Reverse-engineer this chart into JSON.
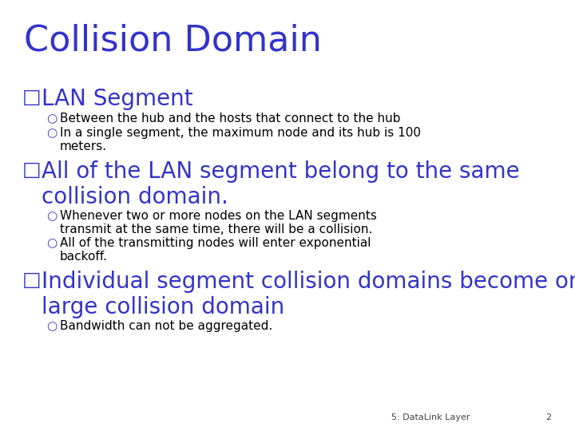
{
  "title": "Collision Domain",
  "title_color": "#3333CC",
  "title_fontsize": 32,
  "background_color": "#FFFFFF",
  "bullet_color": "#3333CC",
  "text_color": "#000000",
  "footer_text": "5: DataLink Layer",
  "footer_number": "2",
  "bullet_marker": "□",
  "sub_bullet_marker": "○",
  "bullet_fontsize": 20,
  "sub_fontsize": 11,
  "bullets": [
    {
      "text": "LAN Segment",
      "sub_bullets": [
        "Between the hub and the hosts that connect to the hub",
        "In a single segment, the maximum node and its hub is 100\nmeters."
      ]
    },
    {
      "text": "All of the LAN segment belong to the same\ncollision domain.",
      "sub_bullets": [
        "Whenever two or more nodes on the LAN segments\ntransmit at the same time, there will be a collision.",
        "All of the transmitting nodes will enter exponential\nbackoff."
      ]
    },
    {
      "text": "Individual segment collision domains become one\nlarge collision domain",
      "sub_bullets": [
        "Bandwidth can not be aggregated."
      ]
    }
  ]
}
